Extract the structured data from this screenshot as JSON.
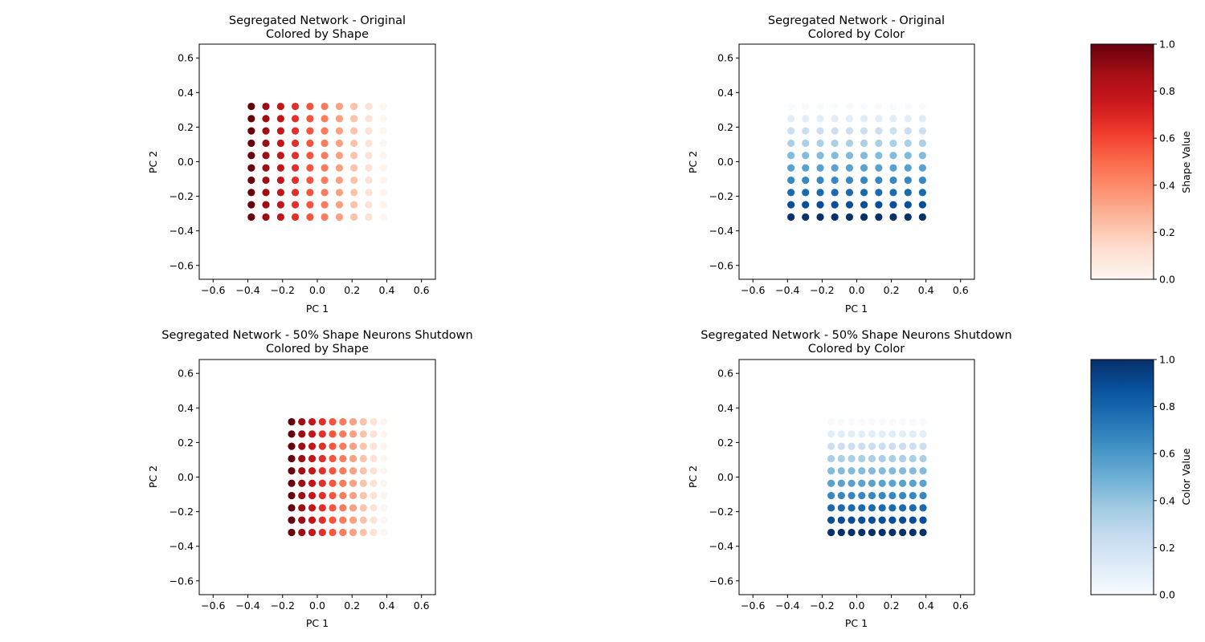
{
  "chart_data": [
    {
      "type": "scatter",
      "title": "Segregated Network - Original",
      "subtitle": "Colored by Shape",
      "xlabel": "PC 1",
      "ylabel": "PC 2",
      "xlim": [
        -0.68,
        0.68
      ],
      "ylim": [
        -0.68,
        0.68
      ],
      "xticks": [
        -0.6,
        -0.4,
        -0.2,
        0.0,
        0.2,
        0.4,
        0.6
      ],
      "yticks": [
        -0.6,
        -0.4,
        -0.2,
        0.0,
        0.2,
        0.4,
        0.6
      ],
      "colormap": "Reds",
      "color_by": "x",
      "x_grid": [
        -0.38,
        -0.296,
        -0.211,
        -0.127,
        -0.042,
        0.042,
        0.127,
        0.211,
        0.296,
        0.38
      ],
      "y_grid": [
        -0.32,
        -0.249,
        -0.178,
        -0.107,
        -0.036,
        0.036,
        0.107,
        0.178,
        0.249,
        0.32
      ],
      "color_values": [
        1.0,
        0.889,
        0.778,
        0.667,
        0.556,
        0.444,
        0.333,
        0.222,
        0.111,
        0.0
      ]
    },
    {
      "type": "scatter",
      "title": "Segregated Network - Original",
      "subtitle": "Colored by Color",
      "xlabel": "PC 1",
      "ylabel": "PC 2",
      "xlim": [
        -0.68,
        0.68
      ],
      "ylim": [
        -0.68,
        0.68
      ],
      "xticks": [
        -0.6,
        -0.4,
        -0.2,
        0.0,
        0.2,
        0.4,
        0.6
      ],
      "yticks": [
        -0.6,
        -0.4,
        -0.2,
        0.0,
        0.2,
        0.4,
        0.6
      ],
      "colormap": "Blues",
      "color_by": "y",
      "x_grid": [
        -0.38,
        -0.296,
        -0.211,
        -0.127,
        -0.042,
        0.042,
        0.127,
        0.211,
        0.296,
        0.38
      ],
      "y_grid": [
        -0.32,
        -0.249,
        -0.178,
        -0.107,
        -0.036,
        0.036,
        0.107,
        0.178,
        0.249,
        0.32
      ],
      "color_values": [
        1.0,
        0.889,
        0.778,
        0.667,
        0.556,
        0.444,
        0.333,
        0.222,
        0.111,
        0.0
      ]
    },
    {
      "type": "scatter",
      "title": "Segregated Network - 50% Shape Neurons Shutdown",
      "subtitle": "Colored by Shape",
      "xlabel": "PC 1",
      "ylabel": "PC 2",
      "xlim": [
        -0.68,
        0.68
      ],
      "ylim": [
        -0.68,
        0.68
      ],
      "xticks": [
        -0.6,
        -0.4,
        -0.2,
        0.0,
        0.2,
        0.4,
        0.6
      ],
      "yticks": [
        -0.6,
        -0.4,
        -0.2,
        0.0,
        0.2,
        0.4,
        0.6
      ],
      "colormap": "Reds",
      "color_by": "x",
      "x_grid": [
        -0.148,
        -0.089,
        -0.03,
        0.029,
        0.088,
        0.147,
        0.206,
        0.265,
        0.324,
        0.383
      ],
      "y_grid": [
        -0.32,
        -0.249,
        -0.178,
        -0.107,
        -0.036,
        0.036,
        0.107,
        0.178,
        0.249,
        0.32
      ],
      "color_values": [
        1.0,
        0.889,
        0.778,
        0.667,
        0.556,
        0.444,
        0.333,
        0.222,
        0.111,
        0.0
      ]
    },
    {
      "type": "scatter",
      "title": "Segregated Network - 50% Shape Neurons Shutdown",
      "subtitle": "Colored by Color",
      "xlabel": "PC 1",
      "ylabel": "PC 2",
      "xlim": [
        -0.68,
        0.68
      ],
      "ylim": [
        -0.68,
        0.68
      ],
      "xticks": [
        -0.6,
        -0.4,
        -0.2,
        0.0,
        0.2,
        0.4,
        0.6
      ],
      "yticks": [
        -0.6,
        -0.4,
        -0.2,
        0.0,
        0.2,
        0.4,
        0.6
      ],
      "colormap": "Blues",
      "color_by": "y",
      "x_grid": [
        -0.148,
        -0.089,
        -0.03,
        0.029,
        0.088,
        0.147,
        0.206,
        0.265,
        0.324,
        0.383
      ],
      "y_grid": [
        -0.32,
        -0.249,
        -0.178,
        -0.107,
        -0.036,
        0.036,
        0.107,
        0.178,
        0.249,
        0.32
      ],
      "color_values": [
        1.0,
        0.889,
        0.778,
        0.667,
        0.556,
        0.444,
        0.333,
        0.222,
        0.111,
        0.0
      ]
    }
  ],
  "colorbars": [
    {
      "label": "Shape Value",
      "colormap": "Reds",
      "ticks": [
        0.0,
        0.2,
        0.4,
        0.6,
        0.8,
        1.0
      ]
    },
    {
      "label": "Color Value",
      "colormap": "Blues",
      "ticks": [
        0.0,
        0.2,
        0.4,
        0.6,
        0.8,
        1.0
      ]
    }
  ],
  "colormaps": {
    "Reds": [
      "#fff5f0",
      "#fee0d2",
      "#fcbba1",
      "#fc9272",
      "#fb6a4a",
      "#ef3b2c",
      "#cb181d",
      "#a50f15",
      "#67000d"
    ],
    "Blues": [
      "#f7fbff",
      "#deebf7",
      "#c6dbef",
      "#9ecae1",
      "#6baed6",
      "#4292c6",
      "#2171b5",
      "#08519c",
      "#08306b"
    ]
  }
}
